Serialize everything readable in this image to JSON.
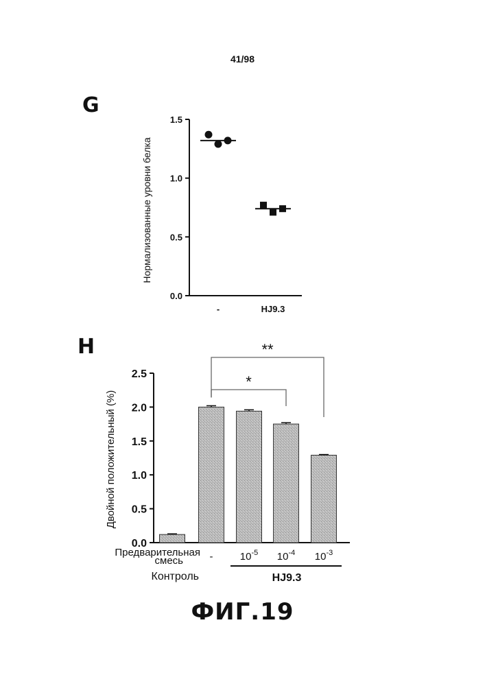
{
  "page_number": "41/98",
  "figure_caption": "ФИГ.19",
  "chart_data": [
    {
      "panel": "G",
      "type": "scatter",
      "ylabel": "Нормализованные уровни белка",
      "ylim": [
        0,
        1.5
      ],
      "yticks": [
        "0.0",
        "0.5",
        "1.0",
        "1.5"
      ],
      "categories": [
        "-",
        "HJ9.3"
      ],
      "groups": [
        {
          "category": "-",
          "marker": "circle",
          "points": [
            1.37,
            1.29,
            1.32
          ],
          "mean": 1.32
        },
        {
          "category": "HJ9.3",
          "marker": "square",
          "points": [
            0.77,
            0.71,
            0.74
          ],
          "mean": 0.74
        }
      ]
    },
    {
      "panel": "H",
      "type": "bar",
      "ylabel": "Двойной положительный (%)",
      "ylim": [
        0,
        2.5
      ],
      "yticks": [
        "0.0",
        "0.5",
        "1.0",
        "1.5",
        "2.0",
        "2.5"
      ],
      "bars": [
        {
          "label": "",
          "value": 0.12,
          "error": 0.01
        },
        {
          "label": "-",
          "value": 2.0,
          "error": 0.02
        },
        {
          "label": "10",
          "exp": "-5",
          "value": 1.94,
          "error": 0.02
        },
        {
          "label": "10",
          "exp": "-4",
          "value": 1.75,
          "error": 0.02
        },
        {
          "label": "10",
          "exp": "-3",
          "value": 1.29,
          "error": 0.01
        }
      ],
      "row_label_premix_line1": "Предварительная",
      "row_label_premix_line2": "смесь",
      "control_label": "Контроль",
      "group_label": "HJ9.3",
      "significance": [
        {
          "from_bar": 1,
          "to_bar": 3,
          "label": "*"
        },
        {
          "from_bar": 1,
          "to_bar": 4,
          "label": "**"
        }
      ]
    }
  ]
}
